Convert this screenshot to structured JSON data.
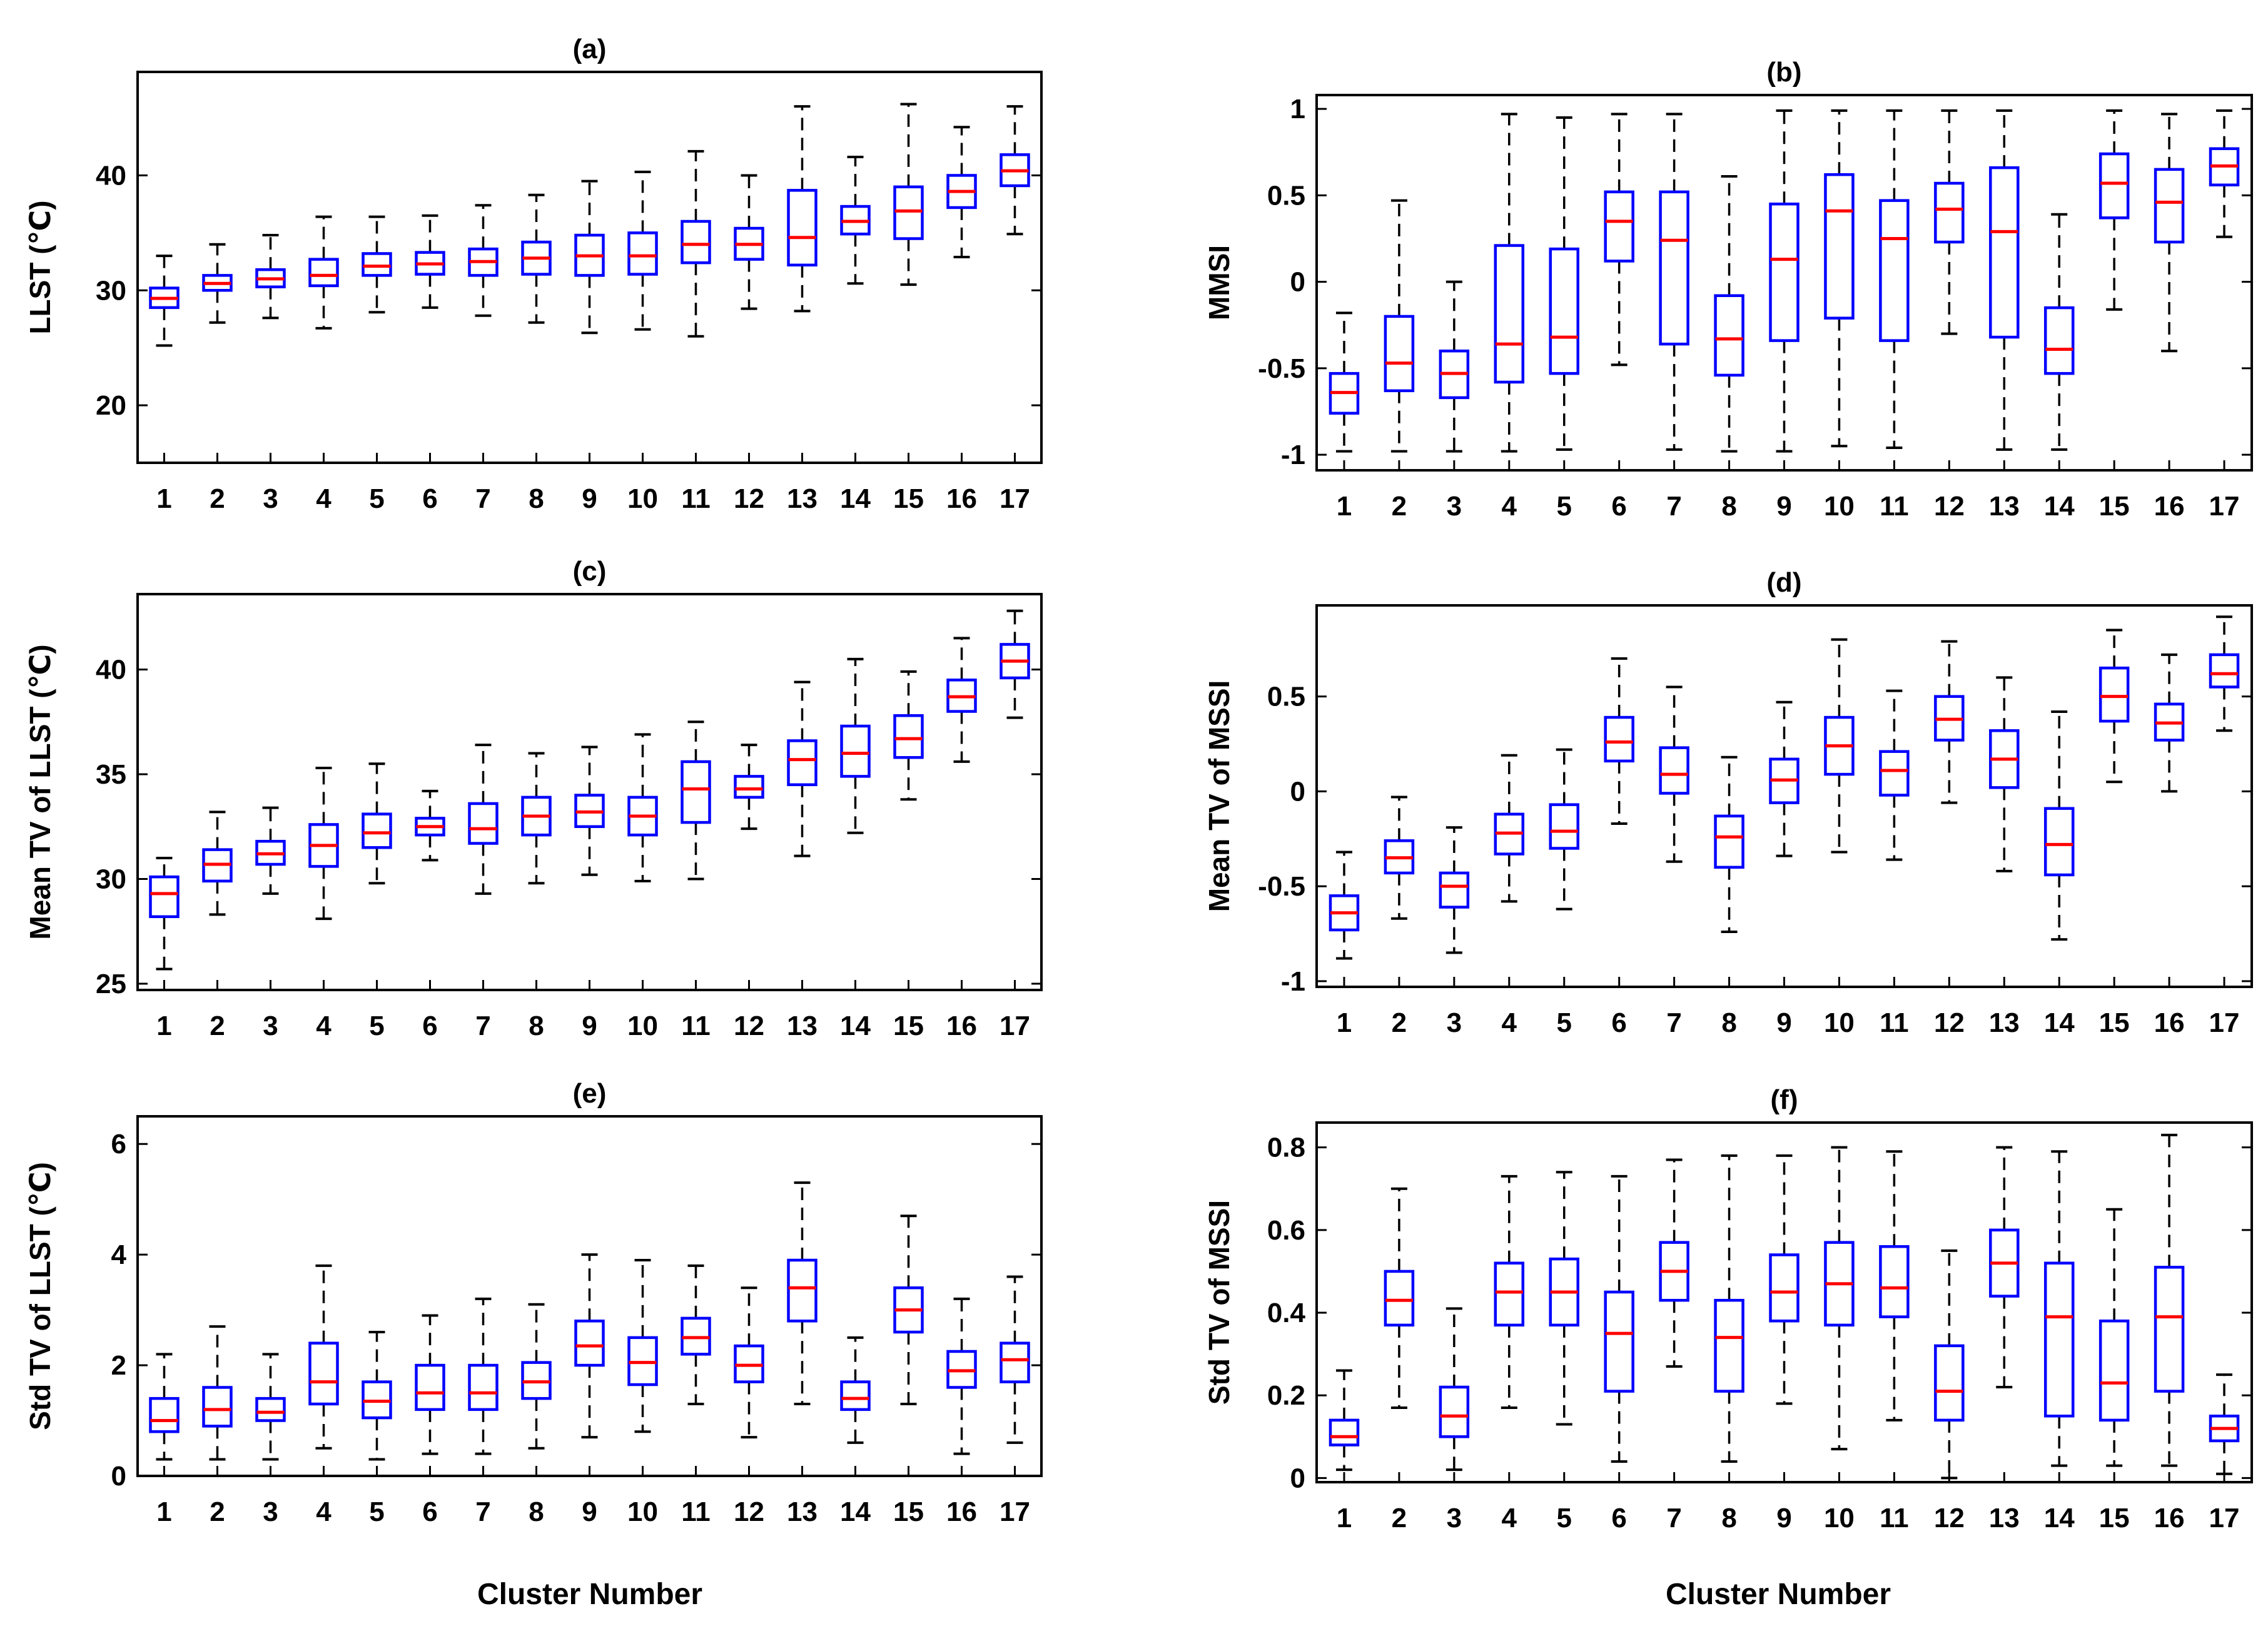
{
  "figure": {
    "xlabel_left": "Cluster Number",
    "xlabel_right": "Cluster Number"
  },
  "style": {
    "box_color": "#0000ff",
    "median_color": "#ff0000",
    "whisker_color": "#000000",
    "axes_color": "#000000"
  },
  "chart_data": [
    {
      "id": "a",
      "type": "boxplot",
      "title": "(a)",
      "ylabel": "LLST (℃)",
      "categories": [
        "1",
        "2",
        "3",
        "4",
        "5",
        "6",
        "7",
        "8",
        "9",
        "10",
        "11",
        "12",
        "13",
        "14",
        "15",
        "16",
        "17"
      ],
      "ylim": [
        15,
        49
      ],
      "yticks": [
        20,
        30,
        40
      ],
      "ytick_labels": [
        "20",
        "30",
        "40"
      ],
      "boxes": [
        {
          "min": 25.2,
          "q1": 28.5,
          "median": 29.3,
          "q3": 30.2,
          "max": 33.0
        },
        {
          "min": 27.2,
          "q1": 30.0,
          "median": 30.6,
          "q3": 31.3,
          "max": 34.0
        },
        {
          "min": 27.6,
          "q1": 30.3,
          "median": 31.0,
          "q3": 31.8,
          "max": 34.8
        },
        {
          "min": 26.7,
          "q1": 30.4,
          "median": 31.3,
          "q3": 32.7,
          "max": 36.4
        },
        {
          "min": 28.1,
          "q1": 31.3,
          "median": 32.1,
          "q3": 33.2,
          "max": 36.4
        },
        {
          "min": 28.5,
          "q1": 31.4,
          "median": 32.3,
          "q3": 33.3,
          "max": 36.5
        },
        {
          "min": 27.8,
          "q1": 31.3,
          "median": 32.5,
          "q3": 33.6,
          "max": 37.4
        },
        {
          "min": 27.2,
          "q1": 31.4,
          "median": 32.8,
          "q3": 34.2,
          "max": 38.3
        },
        {
          "min": 26.3,
          "q1": 31.3,
          "median": 33.0,
          "q3": 34.8,
          "max": 39.5
        },
        {
          "min": 26.6,
          "q1": 31.4,
          "median": 33.0,
          "q3": 35.0,
          "max": 40.3
        },
        {
          "min": 26.0,
          "q1": 32.4,
          "median": 34.0,
          "q3": 36.0,
          "max": 42.1
        },
        {
          "min": 28.4,
          "q1": 32.7,
          "median": 34.0,
          "q3": 35.4,
          "max": 40.0
        },
        {
          "min": 28.2,
          "q1": 32.2,
          "median": 34.6,
          "q3": 38.7,
          "max": 46.0
        },
        {
          "min": 30.6,
          "q1": 34.9,
          "median": 36.0,
          "q3": 37.3,
          "max": 41.6
        },
        {
          "min": 30.5,
          "q1": 34.5,
          "median": 36.9,
          "q3": 39.0,
          "max": 46.2
        },
        {
          "min": 32.9,
          "q1": 37.2,
          "median": 38.6,
          "q3": 40.0,
          "max": 44.2
        },
        {
          "min": 34.9,
          "q1": 39.1,
          "median": 40.4,
          "q3": 41.8,
          "max": 46.0
        }
      ]
    },
    {
      "id": "b",
      "type": "boxplot",
      "title": "(b)",
      "ylabel": "MMSI",
      "categories": [
        "1",
        "2",
        "3",
        "4",
        "5",
        "6",
        "7",
        "8",
        "9",
        "10",
        "11",
        "12",
        "13",
        "14",
        "15",
        "16",
        "17"
      ],
      "ylim": [
        -1.09,
        1.08
      ],
      "yticks": [
        -1,
        -0.5,
        0,
        0.5,
        1
      ],
      "ytick_labels": [
        "-1",
        "-0.5",
        "0",
        "0.5",
        "1"
      ],
      "boxes": [
        {
          "min": -0.98,
          "q1": -0.76,
          "median": -0.64,
          "q3": -0.53,
          "max": -0.18
        },
        {
          "min": -0.98,
          "q1": -0.63,
          "median": -0.47,
          "q3": -0.2,
          "max": 0.47
        },
        {
          "min": -0.98,
          "q1": -0.67,
          "median": -0.53,
          "q3": -0.4,
          "max": 0.0
        },
        {
          "min": -0.98,
          "q1": -0.58,
          "median": -0.36,
          "q3": 0.21,
          "max": 0.97
        },
        {
          "min": -0.97,
          "q1": -0.53,
          "median": -0.32,
          "q3": 0.19,
          "max": 0.95
        },
        {
          "min": -0.48,
          "q1": 0.12,
          "median": 0.35,
          "q3": 0.52,
          "max": 0.97
        },
        {
          "min": -0.97,
          "q1": -0.36,
          "median": 0.24,
          "q3": 0.52,
          "max": 0.97
        },
        {
          "min": -0.98,
          "q1": -0.54,
          "median": -0.33,
          "q3": -0.08,
          "max": 0.61
        },
        {
          "min": -0.98,
          "q1": -0.34,
          "median": 0.13,
          "q3": 0.45,
          "max": 0.99
        },
        {
          "min": -0.95,
          "q1": -0.21,
          "median": 0.41,
          "q3": 0.62,
          "max": 0.99
        },
        {
          "min": -0.96,
          "q1": -0.34,
          "median": 0.25,
          "q3": 0.47,
          "max": 0.99
        },
        {
          "min": -0.3,
          "q1": 0.23,
          "median": 0.42,
          "q3": 0.57,
          "max": 0.99
        },
        {
          "min": -0.97,
          "q1": -0.32,
          "median": 0.29,
          "q3": 0.66,
          "max": 0.99
        },
        {
          "min": -0.97,
          "q1": -0.53,
          "median": -0.39,
          "q3": -0.15,
          "max": 0.39
        },
        {
          "min": -0.16,
          "q1": 0.37,
          "median": 0.57,
          "q3": 0.74,
          "max": 0.99
        },
        {
          "min": -0.4,
          "q1": 0.23,
          "median": 0.46,
          "q3": 0.65,
          "max": 0.97
        },
        {
          "min": 0.26,
          "q1": 0.56,
          "median": 0.67,
          "q3": 0.77,
          "max": 0.99
        }
      ]
    },
    {
      "id": "c",
      "type": "boxplot",
      "title": "(c)",
      "ylabel": "Mean TV of LLST (℃)",
      "categories": [
        "1",
        "2",
        "3",
        "4",
        "5",
        "6",
        "7",
        "8",
        "9",
        "10",
        "11",
        "12",
        "13",
        "14",
        "15",
        "16",
        "17"
      ],
      "ylim": [
        24.7,
        43.6
      ],
      "yticks": [
        25,
        30,
        35,
        40
      ],
      "ytick_labels": [
        "25",
        "30",
        "35",
        "40"
      ],
      "boxes": [
        {
          "min": 25.7,
          "q1": 28.2,
          "median": 29.3,
          "q3": 30.1,
          "max": 31.0
        },
        {
          "min": 28.3,
          "q1": 29.9,
          "median": 30.7,
          "q3": 31.4,
          "max": 33.2
        },
        {
          "min": 29.3,
          "q1": 30.7,
          "median": 31.2,
          "q3": 31.8,
          "max": 33.4
        },
        {
          "min": 28.1,
          "q1": 30.6,
          "median": 31.6,
          "q3": 32.6,
          "max": 35.3
        },
        {
          "min": 29.8,
          "q1": 31.5,
          "median": 32.2,
          "q3": 33.1,
          "max": 35.5
        },
        {
          "min": 30.9,
          "q1": 32.1,
          "median": 32.5,
          "q3": 32.9,
          "max": 34.2
        },
        {
          "min": 29.3,
          "q1": 31.7,
          "median": 32.4,
          "q3": 33.6,
          "max": 36.4
        },
        {
          "min": 29.8,
          "q1": 32.1,
          "median": 33.0,
          "q3": 33.9,
          "max": 36.0
        },
        {
          "min": 30.2,
          "q1": 32.5,
          "median": 33.2,
          "q3": 34.0,
          "max": 36.3
        },
        {
          "min": 29.9,
          "q1": 32.1,
          "median": 33.0,
          "q3": 33.9,
          "max": 36.9
        },
        {
          "min": 30.0,
          "q1": 32.7,
          "median": 34.3,
          "q3": 35.6,
          "max": 37.5
        },
        {
          "min": 32.4,
          "q1": 33.9,
          "median": 34.3,
          "q3": 34.9,
          "max": 36.4
        },
        {
          "min": 31.1,
          "q1": 34.5,
          "median": 35.7,
          "q3": 36.6,
          "max": 39.4
        },
        {
          "min": 32.2,
          "q1": 34.9,
          "median": 36.0,
          "q3": 37.3,
          "max": 40.5
        },
        {
          "min": 33.8,
          "q1": 35.8,
          "median": 36.7,
          "q3": 37.8,
          "max": 39.9
        },
        {
          "min": 35.6,
          "q1": 38.0,
          "median": 38.7,
          "q3": 39.5,
          "max": 41.5
        },
        {
          "min": 37.7,
          "q1": 39.6,
          "median": 40.4,
          "q3": 41.2,
          "max": 42.8
        }
      ]
    },
    {
      "id": "d",
      "type": "boxplot",
      "title": "(d)",
      "ylabel": "Mean TV of MSSI",
      "categories": [
        "1",
        "2",
        "3",
        "4",
        "5",
        "6",
        "7",
        "8",
        "9",
        "10",
        "11",
        "12",
        "13",
        "14",
        "15",
        "16",
        "17"
      ],
      "ylim": [
        -1.03,
        0.98
      ],
      "yticks": [
        -1,
        -0.5,
        0,
        0.5
      ],
      "ytick_labels": [
        "-1",
        "-0.5",
        "0",
        "0.5"
      ],
      "boxes": [
        {
          "min": -0.88,
          "q1": -0.73,
          "median": -0.64,
          "q3": -0.55,
          "max": -0.32
        },
        {
          "min": -0.67,
          "q1": -0.43,
          "median": -0.35,
          "q3": -0.26,
          "max": -0.03
        },
        {
          "min": -0.85,
          "q1": -0.61,
          "median": -0.5,
          "q3": -0.43,
          "max": -0.19
        },
        {
          "min": -0.58,
          "q1": -0.33,
          "median": -0.22,
          "q3": -0.12,
          "max": 0.19
        },
        {
          "min": -0.62,
          "q1": -0.3,
          "median": -0.21,
          "q3": -0.07,
          "max": 0.22
        },
        {
          "min": -0.17,
          "q1": 0.16,
          "median": 0.26,
          "q3": 0.39,
          "max": 0.7
        },
        {
          "min": -0.37,
          "q1": -0.01,
          "median": 0.09,
          "q3": 0.23,
          "max": 0.55
        },
        {
          "min": -0.74,
          "q1": -0.4,
          "median": -0.24,
          "q3": -0.13,
          "max": 0.18
        },
        {
          "min": -0.34,
          "q1": -0.06,
          "median": 0.06,
          "q3": 0.17,
          "max": 0.47
        },
        {
          "min": -0.32,
          "q1": 0.09,
          "median": 0.24,
          "q3": 0.39,
          "max": 0.8
        },
        {
          "min": -0.36,
          "q1": -0.02,
          "median": 0.11,
          "q3": 0.21,
          "max": 0.53
        },
        {
          "min": -0.06,
          "q1": 0.27,
          "median": 0.38,
          "q3": 0.5,
          "max": 0.79
        },
        {
          "min": -0.42,
          "q1": 0.02,
          "median": 0.17,
          "q3": 0.32,
          "max": 0.6
        },
        {
          "min": -0.78,
          "q1": -0.44,
          "median": -0.28,
          "q3": -0.09,
          "max": 0.42
        },
        {
          "min": 0.05,
          "q1": 0.37,
          "median": 0.5,
          "q3": 0.65,
          "max": 0.85
        },
        {
          "min": 0.0,
          "q1": 0.27,
          "median": 0.36,
          "q3": 0.46,
          "max": 0.72
        },
        {
          "min": 0.32,
          "q1": 0.55,
          "median": 0.62,
          "q3": 0.72,
          "max": 0.92
        }
      ]
    },
    {
      "id": "e",
      "type": "boxplot",
      "title": "(e)",
      "ylabel": "Std TV of LLST (℃)",
      "categories": [
        "1",
        "2",
        "3",
        "4",
        "5",
        "6",
        "7",
        "8",
        "9",
        "10",
        "11",
        "12",
        "13",
        "14",
        "15",
        "16",
        "17"
      ],
      "ylim": [
        0,
        6.5
      ],
      "yticks": [
        0,
        2,
        4,
        6
      ],
      "ytick_labels": [
        "0",
        "2",
        "4",
        "6"
      ],
      "boxes": [
        {
          "min": 0.3,
          "q1": 0.8,
          "median": 1.0,
          "q3": 1.4,
          "max": 2.2
        },
        {
          "min": 0.3,
          "q1": 0.9,
          "median": 1.2,
          "q3": 1.6,
          "max": 2.7
        },
        {
          "min": 0.3,
          "q1": 1.0,
          "median": 1.15,
          "q3": 1.4,
          "max": 2.2
        },
        {
          "min": 0.5,
          "q1": 1.3,
          "median": 1.7,
          "q3": 2.4,
          "max": 3.8
        },
        {
          "min": 0.3,
          "q1": 1.05,
          "median": 1.35,
          "q3": 1.7,
          "max": 2.6
        },
        {
          "min": 0.4,
          "q1": 1.2,
          "median": 1.5,
          "q3": 2.0,
          "max": 2.9
        },
        {
          "min": 0.4,
          "q1": 1.2,
          "median": 1.5,
          "q3": 2.0,
          "max": 3.2
        },
        {
          "min": 0.5,
          "q1": 1.4,
          "median": 1.7,
          "q3": 2.05,
          "max": 3.1
        },
        {
          "min": 0.7,
          "q1": 2.0,
          "median": 2.35,
          "q3": 2.8,
          "max": 4.0
        },
        {
          "min": 0.8,
          "q1": 1.65,
          "median": 2.05,
          "q3": 2.5,
          "max": 3.9
        },
        {
          "min": 1.3,
          "q1": 2.2,
          "median": 2.5,
          "q3": 2.85,
          "max": 3.8
        },
        {
          "min": 0.7,
          "q1": 1.7,
          "median": 2.0,
          "q3": 2.35,
          "max": 3.4
        },
        {
          "min": 1.3,
          "q1": 2.8,
          "median": 3.4,
          "q3": 3.9,
          "max": 5.3
        },
        {
          "min": 0.6,
          "q1": 1.2,
          "median": 1.4,
          "q3": 1.7,
          "max": 2.5
        },
        {
          "min": 1.3,
          "q1": 2.6,
          "median": 3.0,
          "q3": 3.4,
          "max": 4.7
        },
        {
          "min": 0.4,
          "q1": 1.6,
          "median": 1.9,
          "q3": 2.25,
          "max": 3.2
        },
        {
          "min": 0.6,
          "q1": 1.7,
          "median": 2.1,
          "q3": 2.4,
          "max": 3.6
        }
      ]
    },
    {
      "id": "f",
      "type": "boxplot",
      "title": "(f)",
      "ylabel": "Std TV of MSSI",
      "categories": [
        "1",
        "2",
        "3",
        "4",
        "5",
        "6",
        "7",
        "8",
        "9",
        "10",
        "11",
        "12",
        "13",
        "14",
        "15",
        "16",
        "17"
      ],
      "ylim": [
        -0.01,
        0.86
      ],
      "yticks": [
        0,
        0.2,
        0.4,
        0.6,
        0.8
      ],
      "ytick_labels": [
        "0",
        "0.2",
        "0.4",
        "0.6",
        "0.8"
      ],
      "boxes": [
        {
          "min": 0.02,
          "q1": 0.08,
          "median": 0.1,
          "q3": 0.14,
          "max": 0.26
        },
        {
          "min": 0.17,
          "q1": 0.37,
          "median": 0.43,
          "q3": 0.5,
          "max": 0.7
        },
        {
          "min": 0.02,
          "q1": 0.1,
          "median": 0.15,
          "q3": 0.22,
          "max": 0.41
        },
        {
          "min": 0.17,
          "q1": 0.37,
          "median": 0.45,
          "q3": 0.52,
          "max": 0.73
        },
        {
          "min": 0.13,
          "q1": 0.37,
          "median": 0.45,
          "q3": 0.53,
          "max": 0.74
        },
        {
          "min": 0.04,
          "q1": 0.21,
          "median": 0.35,
          "q3": 0.45,
          "max": 0.73
        },
        {
          "min": 0.27,
          "q1": 0.43,
          "median": 0.5,
          "q3": 0.57,
          "max": 0.77
        },
        {
          "min": 0.04,
          "q1": 0.21,
          "median": 0.34,
          "q3": 0.43,
          "max": 0.78
        },
        {
          "min": 0.18,
          "q1": 0.38,
          "median": 0.45,
          "q3": 0.54,
          "max": 0.78
        },
        {
          "min": 0.07,
          "q1": 0.37,
          "median": 0.47,
          "q3": 0.57,
          "max": 0.8
        },
        {
          "min": 0.14,
          "q1": 0.39,
          "median": 0.46,
          "q3": 0.56,
          "max": 0.79
        },
        {
          "min": 0.0,
          "q1": 0.14,
          "median": 0.21,
          "q3": 0.32,
          "max": 0.55
        },
        {
          "min": 0.22,
          "q1": 0.44,
          "median": 0.52,
          "q3": 0.6,
          "max": 0.8
        },
        {
          "min": 0.03,
          "q1": 0.15,
          "median": 0.39,
          "q3": 0.52,
          "max": 0.79
        },
        {
          "min": 0.03,
          "q1": 0.14,
          "median": 0.23,
          "q3": 0.38,
          "max": 0.65
        },
        {
          "min": 0.03,
          "q1": 0.21,
          "median": 0.39,
          "q3": 0.51,
          "max": 0.83
        },
        {
          "min": 0.01,
          "q1": 0.09,
          "median": 0.12,
          "q3": 0.15,
          "max": 0.25
        }
      ]
    }
  ]
}
